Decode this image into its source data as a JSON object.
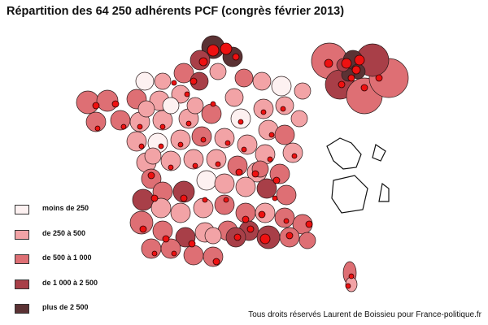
{
  "title": "Répartition des 64 250 adhérents PCF (congrès février 2013)",
  "legend": [
    {
      "label": "moins de 250",
      "color": "#fdf1f1"
    },
    {
      "label": "de 250 à 500",
      "color": "#f2a3a6"
    },
    {
      "label": "de 500 à 1 000",
      "color": "#de6f74"
    },
    {
      "label": "de 1 000 à 2 500",
      "color": "#a83f48"
    },
    {
      "label": "plus de 2 500",
      "color": "#5b3234"
    }
  ],
  "credit": "Tous droits réservés Laurent de Boissieu pour France-politique.fr"
}
